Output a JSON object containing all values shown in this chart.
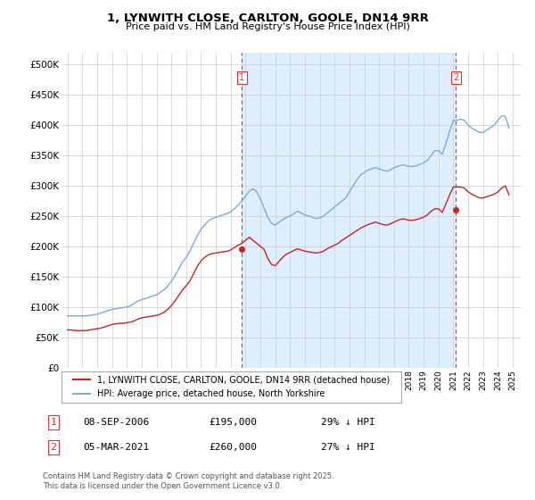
{
  "title": "1, LYNWITH CLOSE, CARLTON, GOOLE, DN14 9RR",
  "subtitle": "Price paid vs. HM Land Registry's House Price Index (HPI)",
  "ylim": [
    0,
    520000
  ],
  "yticks": [
    0,
    50000,
    100000,
    150000,
    200000,
    250000,
    300000,
    350000,
    400000,
    450000,
    500000
  ],
  "ytick_labels": [
    "£0",
    "£50K",
    "£100K",
    "£150K",
    "£200K",
    "£250K",
    "£300K",
    "£350K",
    "£400K",
    "£450K",
    "£500K"
  ],
  "hpi_color": "#7aabdb",
  "price_color": "#cc2222",
  "vline_color": "#dd3333",
  "shade_color": "#ddeeff",
  "bg_color": "#ffffff",
  "grid_color": "#cccccc",
  "purchase1_date": 2006.75,
  "purchase1_price": 195000,
  "purchase2_date": 2021.17,
  "purchase2_price": 260000,
  "legend_line1": "1, LYNWITH CLOSE, CARLTON, GOOLE, DN14 9RR (detached house)",
  "legend_line2": "HPI: Average price, detached house, North Yorkshire",
  "table_row1": [
    "1",
    "08-SEP-2006",
    "£195,000",
    "29% ↓ HPI"
  ],
  "table_row2": [
    "2",
    "05-MAR-2021",
    "£260,000",
    "27% ↓ HPI"
  ],
  "footer": "Contains HM Land Registry data © Crown copyright and database right 2025.\nThis data is licensed under the Open Government Licence v3.0.",
  "hpi_data": {
    "years": [
      1995.0,
      1995.25,
      1995.5,
      1995.75,
      1996.0,
      1996.25,
      1996.5,
      1996.75,
      1997.0,
      1997.25,
      1997.5,
      1997.75,
      1998.0,
      1998.25,
      1998.5,
      1998.75,
      1999.0,
      1999.25,
      1999.5,
      1999.75,
      2000.0,
      2000.25,
      2000.5,
      2000.75,
      2001.0,
      2001.25,
      2001.5,
      2001.75,
      2002.0,
      2002.25,
      2002.5,
      2002.75,
      2003.0,
      2003.25,
      2003.5,
      2003.75,
      2004.0,
      2004.25,
      2004.5,
      2004.75,
      2005.0,
      2005.25,
      2005.5,
      2005.75,
      2006.0,
      2006.25,
      2006.5,
      2006.75,
      2007.0,
      2007.25,
      2007.5,
      2007.75,
      2008.0,
      2008.25,
      2008.5,
      2008.75,
      2009.0,
      2009.25,
      2009.5,
      2009.75,
      2010.0,
      2010.25,
      2010.5,
      2010.75,
      2011.0,
      2011.25,
      2011.5,
      2011.75,
      2012.0,
      2012.25,
      2012.5,
      2012.75,
      2013.0,
      2013.25,
      2013.5,
      2013.75,
      2014.0,
      2014.25,
      2014.5,
      2014.75,
      2015.0,
      2015.25,
      2015.5,
      2015.75,
      2016.0,
      2016.25,
      2016.5,
      2016.75,
      2017.0,
      2017.25,
      2017.5,
      2017.75,
      2018.0,
      2018.25,
      2018.5,
      2018.75,
      2019.0,
      2019.25,
      2019.5,
      2019.75,
      2020.0,
      2020.25,
      2020.5,
      2020.75,
      2021.0,
      2021.25,
      2021.5,
      2021.75,
      2022.0,
      2022.25,
      2022.5,
      2022.75,
      2023.0,
      2023.25,
      2023.5,
      2023.75,
      2024.0,
      2024.25,
      2024.5,
      2024.75
    ],
    "values": [
      85000,
      85500,
      85000,
      85500,
      85000,
      85500,
      86000,
      87000,
      88000,
      90000,
      92000,
      94000,
      96000,
      97000,
      98000,
      99000,
      100000,
      102000,
      106000,
      110000,
      112000,
      114000,
      116000,
      118000,
      120000,
      124000,
      128000,
      134000,
      142000,
      152000,
      163000,
      174000,
      182000,
      192000,
      205000,
      218000,
      228000,
      236000,
      242000,
      246000,
      248000,
      250000,
      252000,
      254000,
      257000,
      262000,
      268000,
      275000,
      283000,
      291000,
      295000,
      290000,
      278000,
      263000,
      248000,
      238000,
      235000,
      240000,
      244000,
      248000,
      250000,
      254000,
      258000,
      255000,
      252000,
      250000,
      248000,
      246000,
      247000,
      250000,
      255000,
      260000,
      265000,
      270000,
      275000,
      280000,
      290000,
      300000,
      310000,
      318000,
      322000,
      326000,
      328000,
      330000,
      328000,
      326000,
      324000,
      326000,
      330000,
      332000,
      334000,
      334000,
      332000,
      332000,
      333000,
      335000,
      338000,
      342000,
      350000,
      358000,
      358000,
      352000,
      370000,
      390000,
      408000,
      408000,
      410000,
      408000,
      400000,
      395000,
      392000,
      388000,
      388000,
      392000,
      396000,
      400000,
      408000,
      415000,
      415000,
      395000
    ]
  },
  "price_data": {
    "years": [
      1995.0,
      1995.25,
      1995.5,
      1995.75,
      1996.0,
      1996.25,
      1996.5,
      1996.75,
      1997.0,
      1997.25,
      1997.5,
      1997.75,
      1998.0,
      1998.25,
      1998.5,
      1998.75,
      1999.0,
      1999.25,
      1999.5,
      1999.75,
      2000.0,
      2000.25,
      2000.5,
      2000.75,
      2001.0,
      2001.25,
      2001.5,
      2001.75,
      2002.0,
      2002.25,
      2002.5,
      2002.75,
      2003.0,
      2003.25,
      2003.5,
      2003.75,
      2004.0,
      2004.25,
      2004.5,
      2004.75,
      2005.0,
      2005.25,
      2005.5,
      2005.75,
      2006.0,
      2006.25,
      2006.5,
      2006.75,
      2007.0,
      2007.25,
      2007.5,
      2007.75,
      2008.0,
      2008.25,
      2008.5,
      2008.75,
      2009.0,
      2009.25,
      2009.5,
      2009.75,
      2010.0,
      2010.25,
      2010.5,
      2010.75,
      2011.0,
      2011.25,
      2011.5,
      2011.75,
      2012.0,
      2012.25,
      2012.5,
      2012.75,
      2013.0,
      2013.25,
      2013.5,
      2013.75,
      2014.0,
      2014.25,
      2014.5,
      2014.75,
      2015.0,
      2015.25,
      2015.5,
      2015.75,
      2016.0,
      2016.25,
      2016.5,
      2016.75,
      2017.0,
      2017.25,
      2017.5,
      2017.75,
      2018.0,
      2018.25,
      2018.5,
      2018.75,
      2019.0,
      2019.25,
      2019.5,
      2019.75,
      2020.0,
      2020.25,
      2020.5,
      2020.75,
      2021.0,
      2021.25,
      2021.5,
      2021.75,
      2022.0,
      2022.25,
      2022.5,
      2022.75,
      2023.0,
      2023.25,
      2023.5,
      2023.75,
      2024.0,
      2024.25,
      2024.5,
      2024.75
    ],
    "values": [
      62000,
      62000,
      61000,
      61000,
      61000,
      61000,
      62000,
      63000,
      64000,
      65000,
      67000,
      69000,
      71000,
      72000,
      73000,
      73000,
      74000,
      75000,
      77000,
      80000,
      82000,
      83000,
      84000,
      85000,
      86000,
      88000,
      91000,
      96000,
      102000,
      110000,
      119000,
      128000,
      135000,
      143000,
      155000,
      167000,
      176000,
      182000,
      186000,
      188000,
      189000,
      190000,
      191000,
      192000,
      194000,
      198000,
      202000,
      205000,
      210000,
      215000,
      210000,
      205000,
      200000,
      195000,
      180000,
      170000,
      168000,
      175000,
      182000,
      187000,
      190000,
      193000,
      196000,
      194000,
      192000,
      191000,
      190000,
      189000,
      190000,
      192000,
      196000,
      199000,
      202000,
      205000,
      210000,
      214000,
      218000,
      222000,
      226000,
      230000,
      233000,
      236000,
      238000,
      240000,
      238000,
      236000,
      235000,
      237000,
      240000,
      243000,
      245000,
      245000,
      243000,
      243000,
      244000,
      246000,
      248000,
      252000,
      258000,
      262000,
      262000,
      256000,
      270000,
      285000,
      298000,
      298000,
      298000,
      296000,
      290000,
      286000,
      283000,
      280000,
      280000,
      282000,
      284000,
      286000,
      290000,
      296000,
      300000,
      285000
    ]
  }
}
